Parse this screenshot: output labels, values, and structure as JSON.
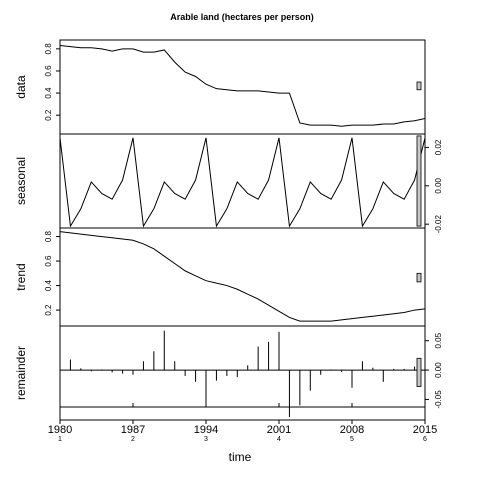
{
  "chart_data": {
    "type": "line",
    "title": "Arable land (hectares per person)",
    "xlabel": "time",
    "xlim": [
      1980,
      2015
    ],
    "x_ticks": [
      {
        "value": 1980,
        "label": "1980",
        "cycle": "1"
      },
      {
        "value": 1987,
        "label": "1987",
        "cycle": "2"
      },
      {
        "value": 1994,
        "label": "1994",
        "cycle": "3"
      },
      {
        "value": 2001,
        "label": "2001",
        "cycle": "4"
      },
      {
        "value": 2008,
        "label": "2008",
        "cycle": "5"
      },
      {
        "value": 2015,
        "label": "2015",
        "cycle": "6"
      }
    ],
    "x": [
      1980,
      1981,
      1982,
      1983,
      1984,
      1985,
      1986,
      1987,
      1988,
      1989,
      1990,
      1991,
      1992,
      1993,
      1994,
      1995,
      1996,
      1997,
      1998,
      1999,
      2000,
      2001,
      2002,
      2003,
      2004,
      2005,
      2006,
      2007,
      2008,
      2009,
      2010,
      2011,
      2012,
      2013,
      2014,
      2015
    ],
    "panels": [
      {
        "name": "data",
        "ylabel": "data",
        "axis_side": "left",
        "ylim": [
          0.03,
          0.88
        ],
        "ticks": [
          {
            "value": 0.2,
            "label": "0.2"
          },
          {
            "value": 0.4,
            "label": "0.4"
          },
          {
            "value": 0.6,
            "label": "0.6"
          },
          {
            "value": 0.8,
            "label": "0.8"
          }
        ],
        "style": "line",
        "values": [
          0.83,
          0.82,
          0.81,
          0.81,
          0.8,
          0.78,
          0.8,
          0.8,
          0.77,
          0.77,
          0.79,
          0.68,
          0.59,
          0.55,
          0.48,
          0.44,
          0.43,
          0.42,
          0.42,
          0.42,
          0.41,
          0.4,
          0.4,
          0.13,
          0.11,
          0.11,
          0.11,
          0.1,
          0.11,
          0.11,
          0.11,
          0.12,
          0.12,
          0.14,
          0.15,
          0.17
        ],
        "scale_bar": [
          0.43,
          0.5
        ]
      },
      {
        "name": "seasonal",
        "ylabel": "seasonal",
        "axis_side": "right",
        "ylim": [
          -0.022,
          0.027
        ],
        "ticks": [
          {
            "value": -0.02,
            "label": "-0.02"
          },
          {
            "value": 0.0,
            "label": "0.00"
          },
          {
            "value": 0.02,
            "label": "0.02"
          }
        ],
        "style": "line",
        "values": [
          0.025,
          -0.021,
          -0.012,
          0.002,
          -0.004,
          -0.007,
          0.003,
          0.025,
          -0.021,
          -0.012,
          0.002,
          -0.004,
          -0.007,
          0.003,
          0.025,
          -0.021,
          -0.012,
          0.002,
          -0.004,
          -0.007,
          0.003,
          0.025,
          -0.021,
          -0.012,
          0.002,
          -0.004,
          -0.007,
          0.003,
          0.025,
          -0.021,
          -0.012,
          0.002,
          -0.004,
          -0.007,
          0.003,
          0.025
        ],
        "scale_bar": [
          -0.021,
          0.026
        ]
      },
      {
        "name": "trend",
        "ylabel": "trend",
        "axis_side": "left",
        "ylim": [
          0.07,
          0.87
        ],
        "ticks": [
          {
            "value": 0.2,
            "label": "0.2"
          },
          {
            "value": 0.4,
            "label": "0.4"
          },
          {
            "value": 0.6,
            "label": "0.6"
          },
          {
            "value": 0.8,
            "label": "0.8"
          }
        ],
        "style": "line",
        "values": [
          0.84,
          0.83,
          0.82,
          0.81,
          0.8,
          0.79,
          0.78,
          0.77,
          0.74,
          0.7,
          0.64,
          0.58,
          0.52,
          0.48,
          0.44,
          0.42,
          0.4,
          0.37,
          0.33,
          0.29,
          0.24,
          0.19,
          0.14,
          0.11,
          0.11,
          0.11,
          0.11,
          0.12,
          0.13,
          0.14,
          0.15,
          0.16,
          0.17,
          0.18,
          0.2,
          0.21
        ],
        "scale_bar": [
          0.43,
          0.5
        ]
      },
      {
        "name": "remainder",
        "ylabel": "remainder",
        "axis_side": "right",
        "ylim": [
          -0.085,
          0.075
        ],
        "ticks": [
          {
            "value": -0.05,
            "label": "-0.05"
          },
          {
            "value": 0.0,
            "label": "0.00"
          },
          {
            "value": 0.05,
            "label": "0.05"
          }
        ],
        "style": "bars",
        "values": [
          -0.02,
          0.018,
          0.003,
          -0.002,
          0.001,
          -0.004,
          -0.006,
          -0.008,
          0.015,
          0.032,
          0.067,
          0.015,
          -0.01,
          -0.02,
          -0.06,
          -0.018,
          -0.01,
          -0.012,
          0.008,
          0.04,
          0.048,
          0.065,
          -0.08,
          -0.06,
          -0.035,
          -0.008,
          0.001,
          -0.003,
          -0.03,
          0.015,
          0.004,
          -0.02,
          0.002,
          0.002,
          0.006,
          0.002
        ],
        "scale_bar": [
          -0.028,
          0.02
        ]
      }
    ]
  }
}
